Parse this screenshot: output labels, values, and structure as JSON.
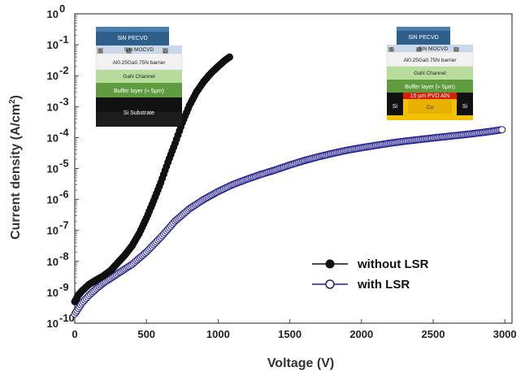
{
  "chart_data": {
    "type": "scatter",
    "xlabel": "Voltage (V)",
    "ylabel": "Current density (A/cm²)",
    "ylabel_main": "Current density (A/cm",
    "ylabel_sup": "2",
    "ylabel_end": ")",
    "xlim": [
      0,
      3050
    ],
    "ylim": [
      1e-10,
      1
    ],
    "yscale": "log",
    "x_ticks": [
      0,
      500,
      1000,
      1500,
      2000,
      2500,
      3000
    ],
    "x_tick_labels": [
      "0",
      "500",
      "1000",
      "1500",
      "2000",
      "2500",
      "3000"
    ],
    "y_ticks": [
      {
        "value": 1e-10,
        "mant": "10",
        "exp": "-10"
      },
      {
        "value": 1e-09,
        "mant": "10",
        "exp": "-9"
      },
      {
        "value": 1e-08,
        "mant": "10",
        "exp": "-8"
      },
      {
        "value": 1e-07,
        "mant": "10",
        "exp": "-7"
      },
      {
        "value": 1e-06,
        "mant": "10",
        "exp": "-6"
      },
      {
        "value": 1e-05,
        "mant": "10",
        "exp": "-5"
      },
      {
        "value": 0.0001,
        "mant": "10",
        "exp": "-4"
      },
      {
        "value": 0.001,
        "mant": "10",
        "exp": "-3"
      },
      {
        "value": 0.01,
        "mant": "10",
        "exp": "-2"
      },
      {
        "value": 0.1,
        "mant": "10",
        "exp": "-1"
      },
      {
        "value": 1,
        "mant": "10",
        "exp": "0"
      }
    ],
    "legend_position": "lower-right",
    "series": [
      {
        "name": "without LSR",
        "marker": "filled-circle",
        "color": "#111111",
        "x": [
          0,
          25,
          50,
          75,
          100,
          150,
          200,
          250,
          300,
          350,
          400,
          450,
          500,
          550,
          600,
          650,
          700,
          750,
          800,
          850,
          900,
          950,
          1000,
          1050,
          1080
        ],
        "y": [
          5e-10,
          8e-10,
          1.1e-09,
          1.4e-09,
          1.8e-09,
          2.5e-09,
          3.4e-09,
          5e-09,
          9e-09,
          1.6e-08,
          3.2e-08,
          8e-08,
          2.5e-07,
          9e-07,
          3.5e-06,
          1.6e-05,
          6.5e-05,
          0.0003,
          0.0011,
          0.003,
          0.0065,
          0.012,
          0.02,
          0.032,
          0.04
        ]
      },
      {
        "name": "with LSR",
        "marker": "open-circle",
        "color": "#1f1b8f",
        "x": [
          0,
          25,
          50,
          100,
          150,
          200,
          300,
          400,
          500,
          600,
          700,
          800,
          900,
          1000,
          1100,
          1200,
          1300,
          1400,
          1500,
          1600,
          1700,
          1800,
          1900,
          2000,
          2100,
          2200,
          2300,
          2400,
          2500,
          2600,
          2700,
          2800,
          2900,
          2980
        ],
        "y": [
          2e-10,
          3e-10,
          4.5e-10,
          8e-10,
          1.3e-09,
          2e-09,
          4e-09,
          8e-09,
          2e-08,
          6e-08,
          2e-07,
          5e-07,
          1e-06,
          1.8e-06,
          3e-06,
          4.5e-06,
          6.5e-06,
          9e-06,
          1.3e-05,
          1.8e-05,
          2.4e-05,
          3.1e-05,
          3.9e-05,
          4.7e-05,
          5.6e-05,
          6.6e-05,
          7.6e-05,
          8.6e-05,
          9.7e-05,
          0.000109,
          0.000122,
          0.000138,
          0.000158,
          0.00018
        ]
      }
    ]
  },
  "inset_left": {
    "layers": [
      "SiN PECVD",
      "SiN MOCVD",
      "Al0.25Ga0.75N barrier",
      "GaN Channel",
      "Buffer layer (≈ 5μm)",
      "Si Substrate"
    ],
    "contacts": [
      "S",
      "G",
      "D"
    ]
  },
  "inset_right": {
    "layers": [
      "SiN PECVD",
      "SiN MOCVD",
      "Al0.25Ga0.75N barrier",
      "GaN Channel",
      "Buffer layer (≈ 5μm)",
      "15 μm PVD AlN",
      "Cu"
    ],
    "contacts": [
      "S",
      "G",
      "D"
    ],
    "side_left": "Si",
    "side_right": "Si"
  }
}
